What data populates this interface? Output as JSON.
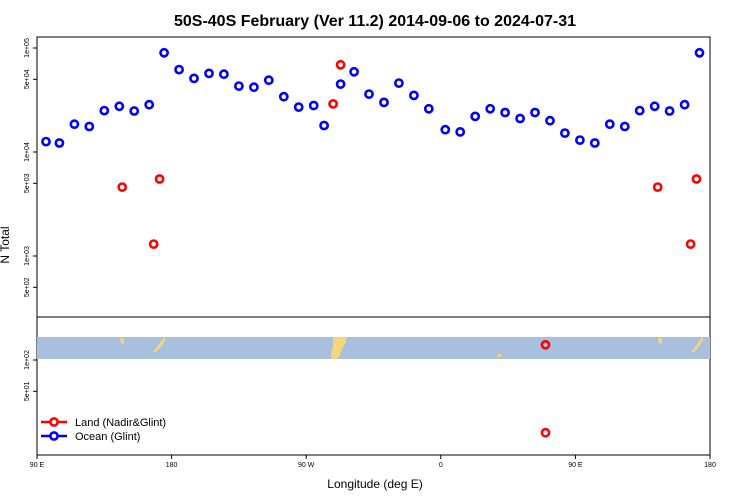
{
  "chart_data": {
    "type": "scatter",
    "title": "50S-40S February (Ver 11.2)   2014-09-06 to 2024-07-31",
    "xlabel": "Longitude (deg E)",
    "ylabel": "N Total",
    "y_scale": "log",
    "x_ticks": [
      {
        "value": 90,
        "label": "90 E"
      },
      {
        "value": 180,
        "label": "180"
      },
      {
        "value": 270,
        "label": "90 W"
      },
      {
        "value": 360,
        "label": "0"
      },
      {
        "value": 450,
        "label": "90 E"
      },
      {
        "value": 540,
        "label": "180"
      }
    ],
    "y_ticks_upper": [
      {
        "value": 100000,
        "label": "1e+05"
      },
      {
        "value": 50000,
        "label": "5e+04"
      },
      {
        "value": 10000,
        "label": "1e+04"
      },
      {
        "value": 5000,
        "label": "5e+03"
      },
      {
        "value": 1000,
        "label": "1e+03"
      },
      {
        "value": 500,
        "label": "5e+02"
      }
    ],
    "y_ticks_lower": [
      {
        "value": 100,
        "label": "1e+02"
      },
      {
        "value": 50,
        "label": "5e+01"
      }
    ],
    "legend": {
      "position": "bottom-left",
      "entries": [
        {
          "label": "Land (Nadir&Glint)",
          "color": "#ff0000"
        },
        {
          "label": "Ocean (Glint)",
          "color": "#0000ff"
        }
      ]
    },
    "colors": {
      "land": "#ff0000",
      "ocean": "#0000ff",
      "map_water": "#a9bfde",
      "map_land": "#f5d77a"
    },
    "series": [
      {
        "name": "Ocean (Glint)",
        "points": [
          {
            "x": 96,
            "y": 12600
          },
          {
            "x": 105,
            "y": 12200
          },
          {
            "x": 115,
            "y": 18500
          },
          {
            "x": 125,
            "y": 17600
          },
          {
            "x": 135,
            "y": 25000
          },
          {
            "x": 145,
            "y": 27500
          },
          {
            "x": 155,
            "y": 24800
          },
          {
            "x": 165,
            "y": 28500
          },
          {
            "x": 175,
            "y": 90000
          },
          {
            "x": 185,
            "y": 62000
          },
          {
            "x": 195,
            "y": 51000
          },
          {
            "x": 205,
            "y": 57000
          },
          {
            "x": 215,
            "y": 56000
          },
          {
            "x": 225,
            "y": 43000
          },
          {
            "x": 235,
            "y": 42000
          },
          {
            "x": 245,
            "y": 49000
          },
          {
            "x": 255,
            "y": 34000
          },
          {
            "x": 265,
            "y": 27000
          },
          {
            "x": 275,
            "y": 28000
          },
          {
            "x": 282,
            "y": 18000
          },
          {
            "x": 293,
            "y": 45000
          },
          {
            "x": 302,
            "y": 59000
          },
          {
            "x": 312,
            "y": 36000
          },
          {
            "x": 322,
            "y": 30000
          },
          {
            "x": 332,
            "y": 46000
          },
          {
            "x": 342,
            "y": 35000
          },
          {
            "x": 352,
            "y": 26000
          },
          {
            "x": 363,
            "y": 16400
          },
          {
            "x": 373,
            "y": 15600
          },
          {
            "x": 383,
            "y": 22000
          },
          {
            "x": 393,
            "y": 26000
          },
          {
            "x": 403,
            "y": 24000
          },
          {
            "x": 413,
            "y": 21000
          },
          {
            "x": 423,
            "y": 24000
          },
          {
            "x": 433,
            "y": 20000
          },
          {
            "x": 443,
            "y": 15200
          },
          {
            "x": 453,
            "y": 13000
          },
          {
            "x": 463,
            "y": 12200
          },
          {
            "x": 473,
            "y": 18500
          },
          {
            "x": 483,
            "y": 17600
          },
          {
            "x": 493,
            "y": 25000
          },
          {
            "x": 503,
            "y": 27500
          },
          {
            "x": 513,
            "y": 24800
          },
          {
            "x": 523,
            "y": 28500
          },
          {
            "x": 533,
            "y": 90000
          }
        ]
      },
      {
        "name": "Land (Nadir&Glint)",
        "points": [
          {
            "x": 147,
            "y": 4600
          },
          {
            "x": 172,
            "y": 5500
          },
          {
            "x": 168,
            "y": 1300
          },
          {
            "x": 288,
            "y": 29000
          },
          {
            "x": 293,
            "y": 69000
          },
          {
            "x": 430,
            "y": 140
          },
          {
            "x": 430,
            "y": 20
          },
          {
            "x": 505,
            "y": 4600
          },
          {
            "x": 531,
            "y": 5500
          },
          {
            "x": 527,
            "y": 1300
          }
        ]
      }
    ]
  }
}
